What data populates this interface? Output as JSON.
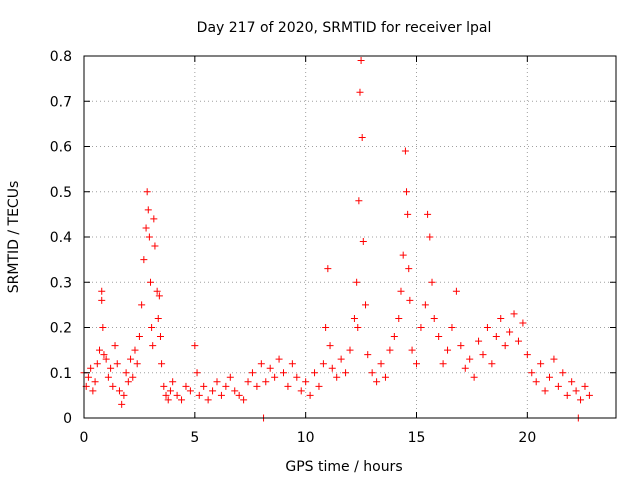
{
  "chart_data": {
    "type": "scatter",
    "title": "Day 217 of 2020, SRMTID for receiver lpal",
    "xlabel": "GPS time / hours",
    "ylabel": "SRMTID / TECUs",
    "xlim": [
      0,
      24
    ],
    "ylim": [
      0,
      0.8
    ],
    "x_ticks": [
      0,
      5,
      10,
      15,
      20
    ],
    "x_tick_labels": [
      "0",
      "5",
      "10",
      "15",
      "20"
    ],
    "y_ticks": [
      0,
      0.1,
      0.2,
      0.3,
      0.4,
      0.5,
      0.6,
      0.7,
      0.8
    ],
    "y_tick_labels": [
      "0",
      "0.1",
      "0.2",
      "0.3",
      "0.4",
      "0.5",
      "0.6",
      "0.7",
      "0.8"
    ],
    "grid": true,
    "marker": "plus",
    "color": "#ff0000",
    "series": [
      {
        "name": "SRMTID",
        "x": [
          0.0,
          0.1,
          0.2,
          0.3,
          0.4,
          0.5,
          0.6,
          0.7,
          0.8,
          0.8,
          0.85,
          0.9,
          1.0,
          1.1,
          1.2,
          1.3,
          1.4,
          1.5,
          1.6,
          1.7,
          1.8,
          1.9,
          2.0,
          2.1,
          2.2,
          2.3,
          2.4,
          2.5,
          2.6,
          2.7,
          2.8,
          2.85,
          2.9,
          2.95,
          3.0,
          3.05,
          3.1,
          3.15,
          3.2,
          3.3,
          3.35,
          3.4,
          3.45,
          3.5,
          3.6,
          3.7,
          3.8,
          3.9,
          4.0,
          4.2,
          4.4,
          4.6,
          4.8,
          5.0,
          5.1,
          5.2,
          5.4,
          5.6,
          5.8,
          6.0,
          6.2,
          6.4,
          6.6,
          6.8,
          7.0,
          7.2,
          7.4,
          7.6,
          7.8,
          8.0,
          8.2,
          8.4,
          8.6,
          8.8,
          9.0,
          9.2,
          9.4,
          9.6,
          9.8,
          10.0,
          10.2,
          10.4,
          10.6,
          10.8,
          10.9,
          11.0,
          11.1,
          11.2,
          11.4,
          11.6,
          11.8,
          12.0,
          12.2,
          12.3,
          12.35,
          12.4,
          12.45,
          12.5,
          12.55,
          12.6,
          12.7,
          12.8,
          13.0,
          13.2,
          13.4,
          13.6,
          13.8,
          14.0,
          14.2,
          14.3,
          14.4,
          14.5,
          14.55,
          14.6,
          14.65,
          14.7,
          14.8,
          15.0,
          15.2,
          15.4,
          15.5,
          15.6,
          15.7,
          15.8,
          16.0,
          16.2,
          16.4,
          16.6,
          16.8,
          17.0,
          17.2,
          17.4,
          17.6,
          17.8,
          18.0,
          18.2,
          18.4,
          18.6,
          18.8,
          19.0,
          19.2,
          19.4,
          19.6,
          19.8,
          20.0,
          20.2,
          20.4,
          20.6,
          20.8,
          21.0,
          21.2,
          21.4,
          21.6,
          21.8,
          22.0,
          22.2,
          22.4,
          22.6,
          22.8,
          8.1,
          22.3
        ],
        "y": [
          0.1,
          0.07,
          0.09,
          0.11,
          0.06,
          0.08,
          0.12,
          0.15,
          0.28,
          0.26,
          0.2,
          0.14,
          0.13,
          0.09,
          0.11,
          0.07,
          0.16,
          0.12,
          0.06,
          0.03,
          0.05,
          0.1,
          0.08,
          0.13,
          0.09,
          0.15,
          0.12,
          0.18,
          0.25,
          0.35,
          0.42,
          0.5,
          0.46,
          0.4,
          0.3,
          0.2,
          0.16,
          0.44,
          0.38,
          0.28,
          0.22,
          0.27,
          0.18,
          0.12,
          0.07,
          0.05,
          0.04,
          0.06,
          0.08,
          0.05,
          0.04,
          0.07,
          0.06,
          0.16,
          0.1,
          0.05,
          0.07,
          0.04,
          0.06,
          0.08,
          0.05,
          0.07,
          0.09,
          0.06,
          0.05,
          0.04,
          0.08,
          0.1,
          0.07,
          0.12,
          0.08,
          0.11,
          0.09,
          0.13,
          0.1,
          0.07,
          0.12,
          0.09,
          0.06,
          0.08,
          0.05,
          0.1,
          0.07,
          0.12,
          0.2,
          0.33,
          0.16,
          0.11,
          0.09,
          0.13,
          0.1,
          0.15,
          0.22,
          0.3,
          0.2,
          0.48,
          0.72,
          0.79,
          0.62,
          0.39,
          0.25,
          0.14,
          0.1,
          0.08,
          0.12,
          0.09,
          0.15,
          0.18,
          0.22,
          0.28,
          0.36,
          0.59,
          0.5,
          0.45,
          0.33,
          0.26,
          0.15,
          0.12,
          0.2,
          0.25,
          0.45,
          0.4,
          0.3,
          0.22,
          0.18,
          0.12,
          0.15,
          0.2,
          0.28,
          0.16,
          0.11,
          0.13,
          0.09,
          0.17,
          0.14,
          0.2,
          0.12,
          0.18,
          0.22,
          0.16,
          0.19,
          0.23,
          0.17,
          0.21,
          0.14,
          0.1,
          0.08,
          0.12,
          0.06,
          0.09,
          0.13,
          0.07,
          0.1,
          0.05,
          0.08,
          0.06,
          0.04,
          0.07,
          0.05,
          0.0,
          0.0
        ]
      }
    ]
  }
}
